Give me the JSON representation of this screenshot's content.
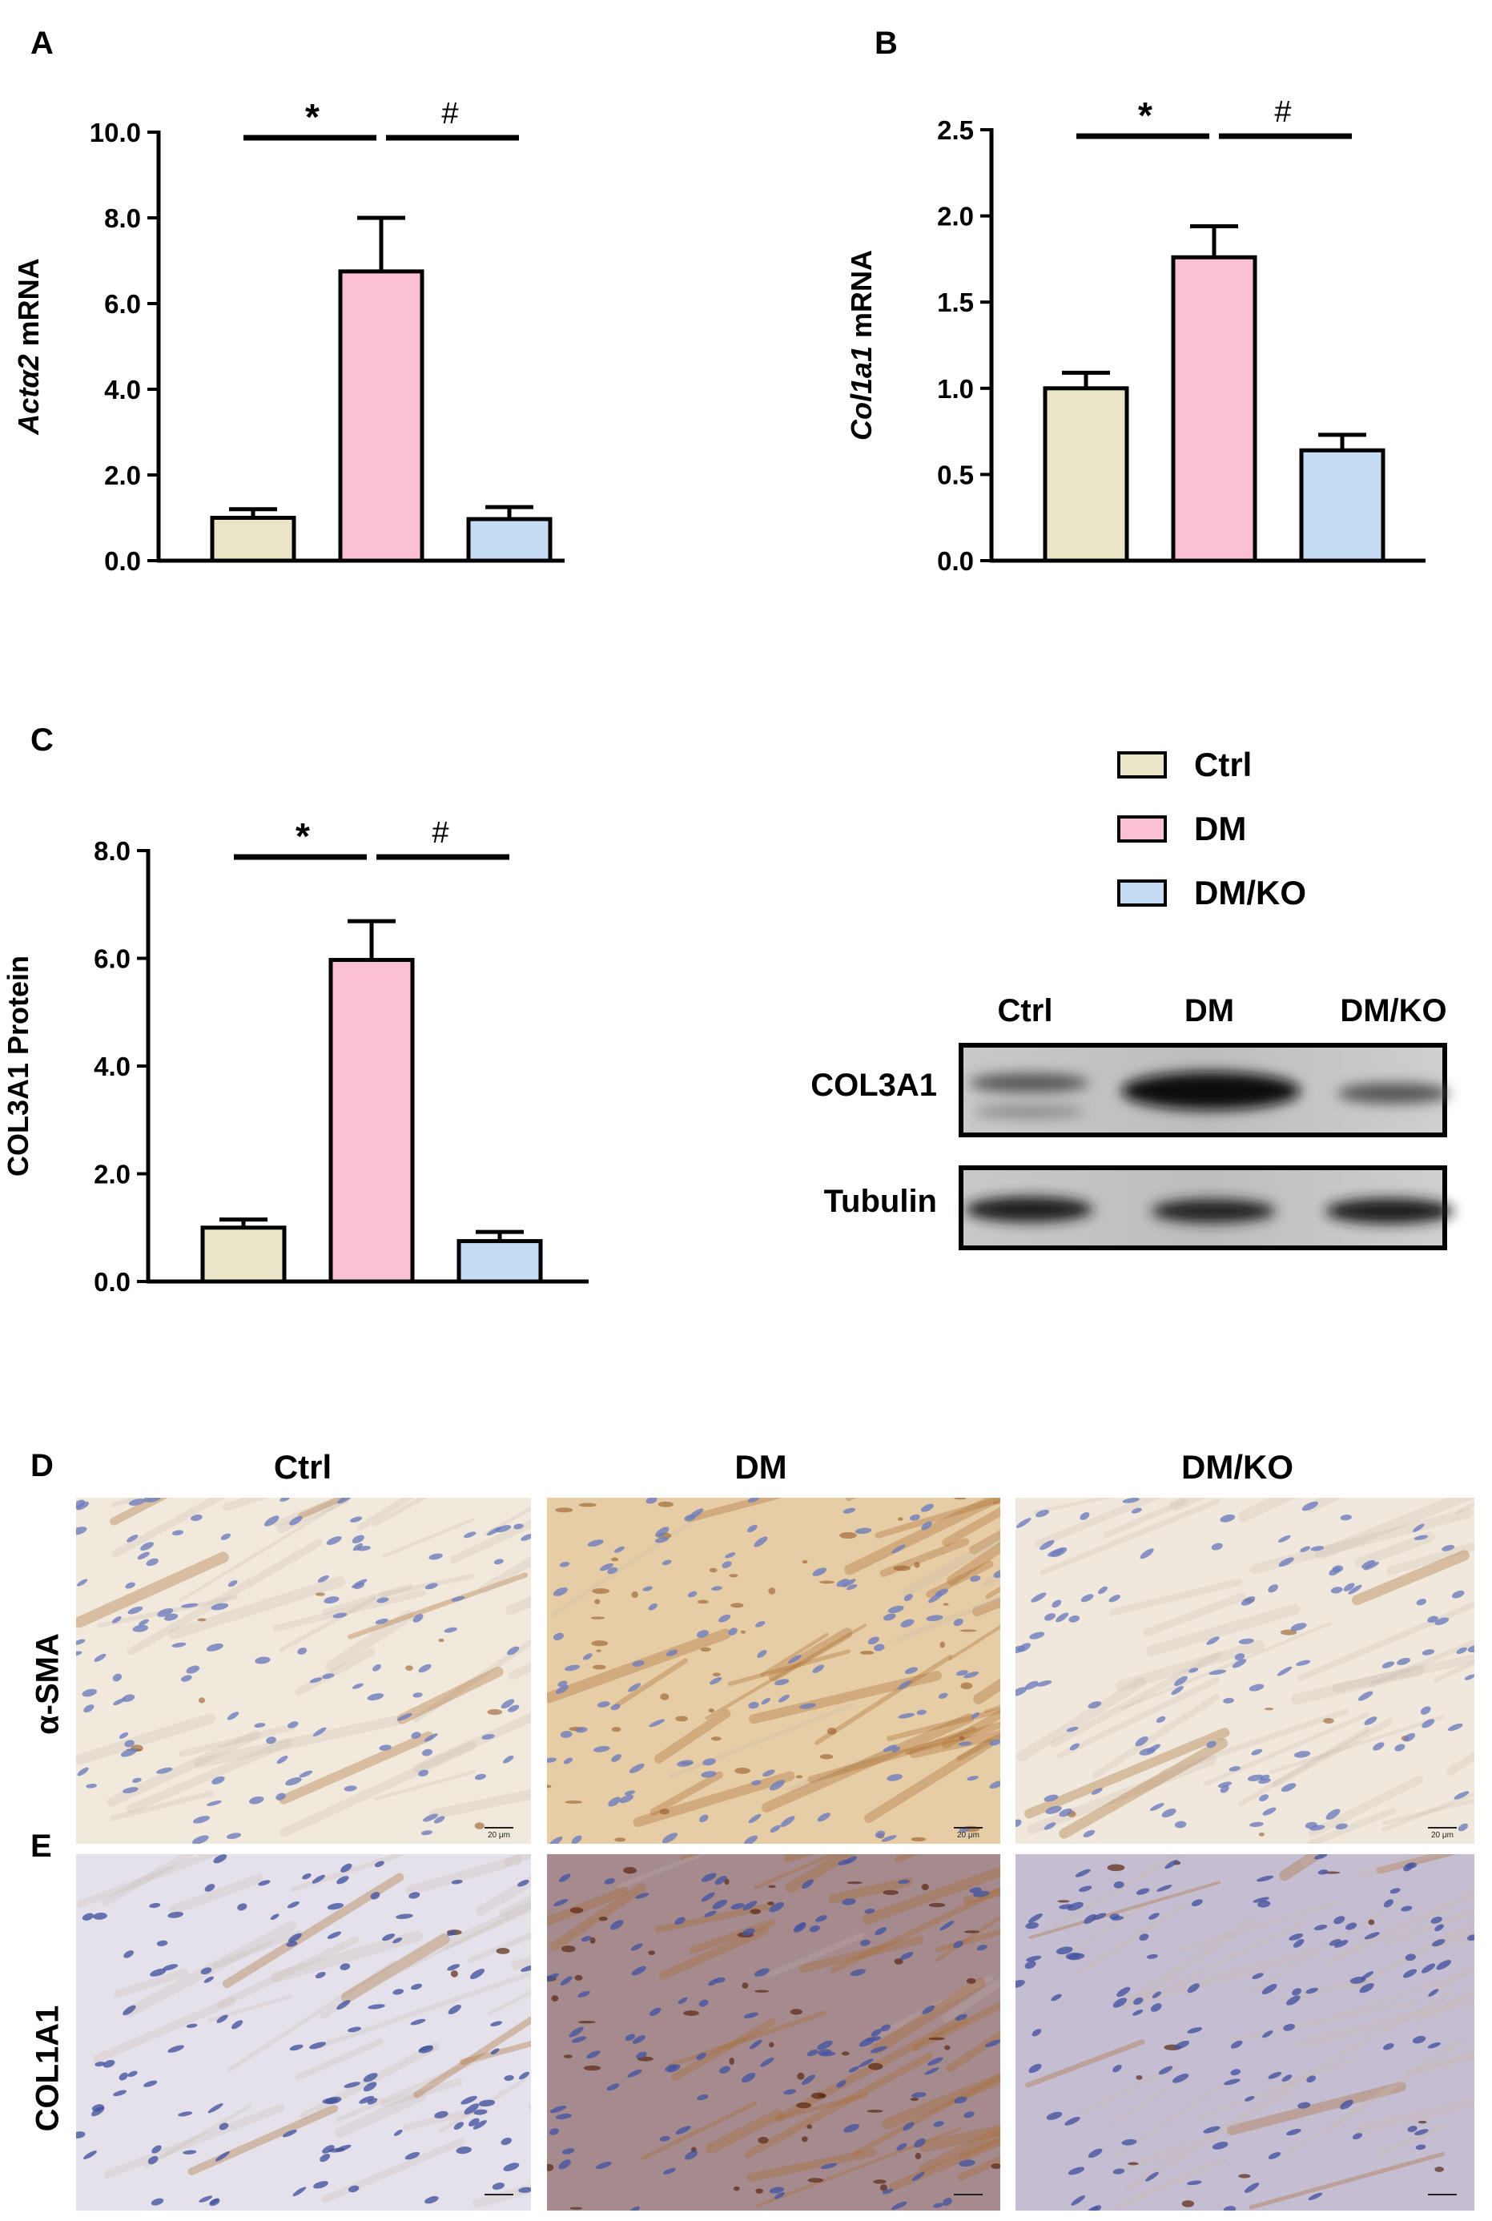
{
  "panels": {
    "A": "A",
    "B": "B",
    "C": "C",
    "D": "D",
    "E": "E"
  },
  "groups": [
    "Ctrl",
    "DM",
    "DM/KO"
  ],
  "colors": {
    "Ctrl": "#ebe5c7",
    "DM": "#fbbfd6",
    "DM/KO": "#c6dcf5"
  },
  "chart_data": [
    {
      "type": "bar",
      "panel": "A",
      "categories": [
        "Ctrl",
        "DM",
        "DM/KO"
      ],
      "values": [
        1.0,
        6.75,
        0.97
      ],
      "errors": [
        0.2,
        1.25,
        0.28
      ],
      "ylabel_italic": "Actα2",
      "ylabel_rest": " mRNA",
      "ylim": [
        0,
        10
      ],
      "ticks": [
        "0.0",
        "2.0",
        "4.0",
        "6.0",
        "8.0",
        "10.0"
      ],
      "tick_values": [
        0,
        2,
        4,
        6,
        8,
        10
      ],
      "significance": [
        "*",
        "#"
      ]
    },
    {
      "type": "bar",
      "panel": "B",
      "categories": [
        "Ctrl",
        "DM",
        "DM/KO"
      ],
      "values": [
        1.0,
        1.76,
        0.64
      ],
      "errors": [
        0.09,
        0.18,
        0.09
      ],
      "ylabel_italic": "Col1a1",
      "ylabel_rest": " mRNA",
      "ylim": [
        0,
        2.5
      ],
      "ticks": [
        "0.0",
        "0.5",
        "1.0",
        "1.5",
        "2.0",
        "2.5"
      ],
      "tick_values": [
        0,
        0.5,
        1.0,
        1.5,
        2.0,
        2.5
      ],
      "significance": [
        "*",
        "#"
      ]
    },
    {
      "type": "bar",
      "panel": "C",
      "categories": [
        "Ctrl",
        "DM",
        "DM/KO"
      ],
      "values": [
        1.0,
        5.97,
        0.75
      ],
      "errors": [
        0.15,
        0.72,
        0.17
      ],
      "ylabel_italic": "",
      "ylabel_rest": "COL3A1 Protein",
      "ylim": [
        0,
        8
      ],
      "ticks": [
        "0.0",
        "2.0",
        "4.0",
        "6.0",
        "8.0"
      ],
      "tick_values": [
        0,
        2,
        4,
        6,
        8
      ],
      "significance": [
        "*",
        "#"
      ]
    }
  ],
  "legend": {
    "items": [
      "Ctrl",
      "DM",
      "DM/KO"
    ]
  },
  "blot": {
    "lanes": [
      "Ctrl",
      "DM",
      "DM/KO"
    ],
    "rows": [
      "COL3A1",
      "Tubulin"
    ]
  },
  "histology": {
    "columns": [
      "Ctrl",
      "DM",
      "DM/KO"
    ],
    "rows": [
      "α-SMA",
      "COL1A1"
    ],
    "scale_bar": "20 μm"
  }
}
